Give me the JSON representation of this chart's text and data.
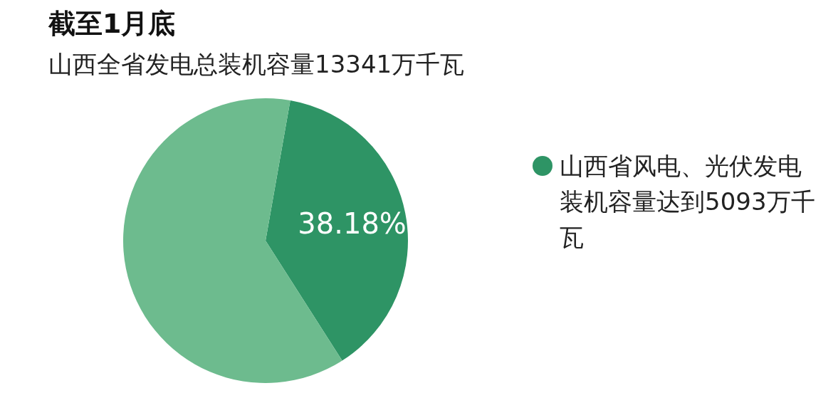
{
  "chart_data": {
    "type": "pie",
    "title": "截至1月底",
    "subtitle": "山西全省发电总装机容量13341万千瓦",
    "categories": [
      "山西省风电、光伏发电装机容量达到5093万千瓦",
      null
    ],
    "values": [
      38.18,
      61.82
    ],
    "colors": [
      "#2e9465",
      "#6dbb8e"
    ],
    "value_labels": [
      "38.18%",
      null
    ],
    "legend": "right"
  }
}
